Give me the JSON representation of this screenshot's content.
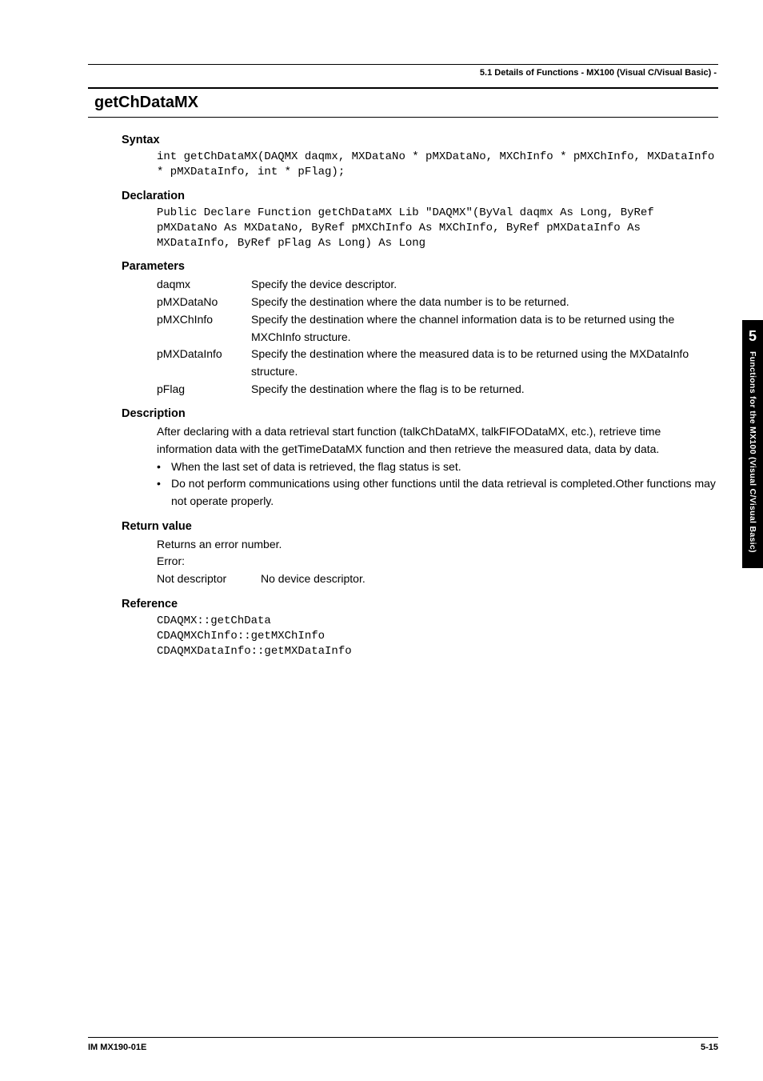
{
  "header": {
    "section_title": "5.1  Details of Functions - MX100 (Visual C/Visual  Basic) -"
  },
  "title": "getChDataMX",
  "sections": {
    "syntax": {
      "heading": "Syntax",
      "code": "int getChDataMX(DAQMX daqmx, MXDataNo * pMXDataNo, MXChInfo * pMXChInfo, MXDataInfo * pMXDataInfo, int * pFlag);"
    },
    "declaration": {
      "heading": "Declaration",
      "code": "Public Declare Function getChDataMX Lib \"DAQMX\"(ByVal daqmx As Long, ByRef pMXDataNo As MXDataNo, ByRef pMXChInfo As MXChInfo, ByRef pMXDataInfo As MXDataInfo, ByRef pFlag As Long) As Long"
    },
    "parameters": {
      "heading": "Parameters",
      "items": [
        {
          "name": "daqmx",
          "desc": "Specify the device descriptor."
        },
        {
          "name": "pMXDataNo",
          "desc": "Specify the destination where the data number is to be returned."
        },
        {
          "name": "pMXChInfo",
          "desc": "Specify the destination where the channel information data is to be returned using the MXChInfo structure."
        },
        {
          "name": "pMXDataInfo",
          "desc": "Specify the destination where the measured data is to be returned using the MXDataInfo structure."
        },
        {
          "name": "pFlag",
          "desc": "Specify the destination where the flag is to be returned."
        }
      ]
    },
    "description": {
      "heading": "Description",
      "intro": "After declaring with a data retrieval start function (talkChDataMX, talkFIFODataMX, etc.), retrieve time information data with the getTimeDataMX function and then retrieve the measured data, data by data.",
      "bullets": [
        "When the last set of data is retrieved, the flag status is set.",
        " Do not perform communications using other functions until the data retrieval is completed.Other functions may not operate properly."
      ]
    },
    "return_value": {
      "heading": "Return value",
      "line1": "Returns an error number.",
      "line2": "Error:",
      "err_label": "Not descriptor",
      "err_desc": "No device descriptor."
    },
    "reference": {
      "heading": "Reference",
      "lines": [
        "CDAQMX::getChData",
        "CDAQMXChInfo::getMXChInfo",
        "CDAQMXDataInfo::getMXDataInfo"
      ]
    }
  },
  "side_tab": {
    "chapter": "5",
    "label": "Functions for the MX100 (Visual C/Visual Basic)"
  },
  "footer": {
    "left": "IM MX190-01E",
    "right": "5-15"
  }
}
